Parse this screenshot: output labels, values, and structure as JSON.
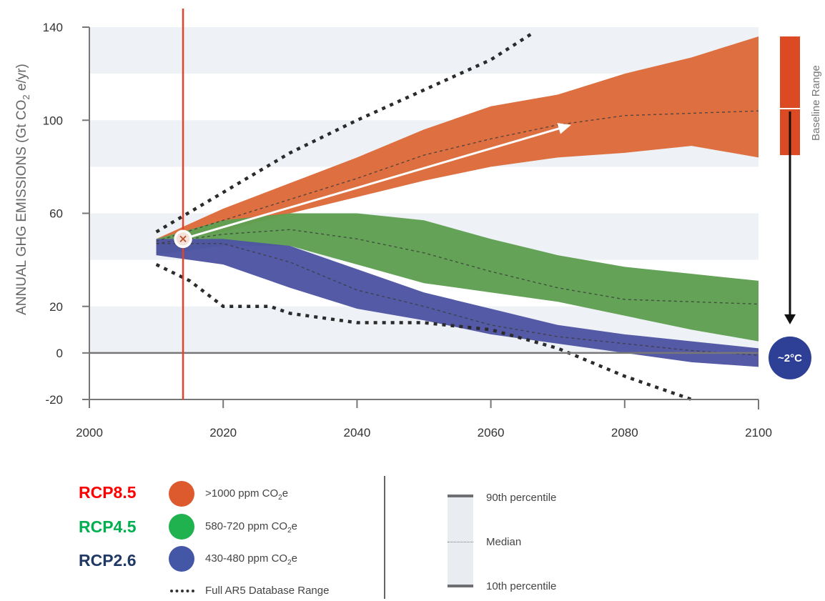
{
  "chart_data": {
    "type": "area",
    "ylabel_main": "ANNUAL GHG EMISSIONS (Gt CO",
    "ylabel_sub": "2",
    "ylabel_tail": " e/yr)",
    "xlim": [
      2000,
      2100
    ],
    "ylim": [
      -20,
      140
    ],
    "x_ticks": [
      "2000",
      "2020",
      "2040",
      "2060",
      "2080",
      "2100"
    ],
    "y_ticks": [
      "-20",
      "0",
      "20",
      "60",
      "100",
      "140"
    ],
    "x_tick_values": [
      2000,
      2020,
      2040,
      2060,
      2080,
      2100
    ],
    "y_tick_values": [
      -20,
      0,
      20,
      60,
      100,
      140
    ],
    "grid_bands": [
      [
        0,
        20
      ],
      [
        40,
        60
      ],
      [
        80,
        100
      ],
      [
        120,
        140
      ]
    ],
    "marker_year": 2014,
    "series": [
      {
        "name": "RCP8.5",
        "color": "#dc6a3a",
        "x": [
          2010,
          2020,
          2030,
          2040,
          2050,
          2060,
          2070,
          2080,
          2090,
          2100
        ],
        "upper": [
          49,
          62,
          73,
          84,
          96,
          106,
          111,
          120,
          127,
          136
        ],
        "lower": [
          47,
          52,
          60,
          67,
          74,
          80,
          84,
          86,
          89,
          84
        ],
        "median": [
          48,
          57,
          66,
          75,
          85,
          92,
          98,
          102,
          103,
          104
        ]
      },
      {
        "name": "RCP4.5",
        "color": "#5fa052",
        "x": [
          2010,
          2020,
          2030,
          2040,
          2050,
          2060,
          2070,
          2080,
          2090,
          2100
        ],
        "upper": [
          49,
          57,
          60,
          60,
          57,
          49,
          42,
          37,
          34,
          31
        ],
        "lower": [
          42,
          46,
          46,
          38,
          30,
          26,
          22,
          16,
          10,
          5
        ],
        "median": [
          47,
          51,
          53,
          49,
          43,
          35,
          28,
          23,
          22,
          21
        ]
      },
      {
        "name": "RCP2.6",
        "color": "#4f55a3",
        "x": [
          2010,
          2020,
          2030,
          2040,
          2050,
          2060,
          2070,
          2080,
          2090,
          2100
        ],
        "upper": [
          49,
          49,
          46,
          36,
          26,
          19,
          12,
          8,
          5,
          2
        ],
        "lower": [
          42,
          38,
          28,
          19,
          14,
          8,
          4,
          0,
          -4,
          -6
        ],
        "median": [
          47,
          47,
          39,
          27,
          20,
          12,
          7,
          4,
          1,
          -1
        ]
      }
    ],
    "full_range": {
      "upper": {
        "x": [
          2010,
          2020,
          2030,
          2040,
          2050,
          2060,
          2066
        ],
        "y": [
          52,
          69,
          86,
          100,
          113,
          126,
          137
        ]
      },
      "lower": {
        "x": [
          2010,
          2015,
          2020,
          2027,
          2030,
          2040,
          2050,
          2060,
          2070,
          2080,
          2090
        ],
        "y": [
          38,
          31,
          20,
          20,
          17,
          13,
          13,
          10,
          2,
          -10,
          -20
        ]
      }
    },
    "arrow": {
      "x1": 2014,
      "y1": 49,
      "x2": 2072,
      "y2": 98
    },
    "baseline_range": {
      "label": "Baseline Range",
      "top": 136,
      "bottom": 85,
      "median": 105
    },
    "target": {
      "label": "~2°C",
      "y": 0
    },
    "legend": {
      "rcp": [
        {
          "label": "RCP8.5",
          "label_color": "#ff0000",
          "dot_color": "#dc5a2e",
          "text_main": ">1000 ppm CO",
          "text_sub": "2",
          "text_tail": "e"
        },
        {
          "label": "RCP4.5",
          "label_color": "#00b050",
          "dot_color": "#1fb24f",
          "text_main": "580-720 ppm CO",
          "text_sub": "2",
          "text_tail": "e"
        },
        {
          "label": "RCP2.6",
          "label_color": "#1f3864",
          "dot_color": "#4456a6",
          "text_main": "430-480 ppm CO",
          "text_sub": "2",
          "text_tail": "e"
        }
      ],
      "full_range_label": "Full AR5 Database Range",
      "percentile": {
        "p90": "90th percentile",
        "median": "Median",
        "p10": "10th percentile"
      }
    }
  }
}
